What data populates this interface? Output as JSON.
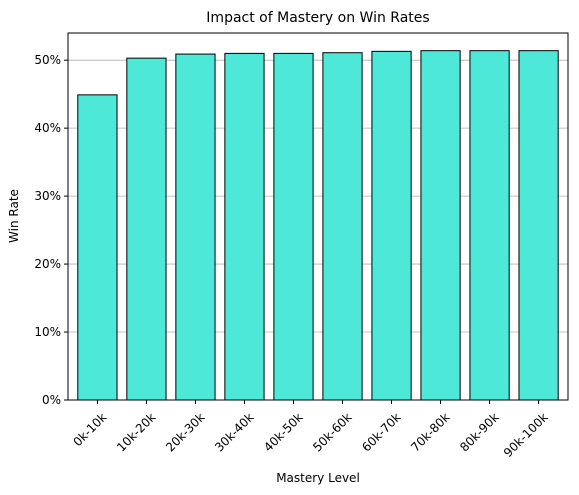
{
  "chart_data": {
    "type": "bar",
    "title": "Impact of Mastery on Win Rates",
    "xlabel": "Mastery Level",
    "ylabel": "Win Rate",
    "categories": [
      "0k-10k",
      "10k-20k",
      "20k-30k",
      "30k-40k",
      "40k-50k",
      "50k-60k",
      "60k-70k",
      "70k-80k",
      "80k-90k",
      "90k-100k"
    ],
    "values": [
      0.449,
      0.503,
      0.509,
      0.51,
      0.51,
      0.511,
      0.513,
      0.514,
      0.514,
      0.514
    ],
    "ylim": [
      0,
      0.54
    ],
    "yticks": [
      0,
      0.1,
      0.2,
      0.3,
      0.4,
      0.5
    ],
    "ytick_labels": [
      "0%",
      "10%",
      "20%",
      "30%",
      "40%",
      "50%"
    ],
    "grid": "horizontal",
    "colors": {
      "bar_fill": "#4de8d8",
      "bar_edge": "#000000",
      "grid": "#b0b0b0"
    }
  }
}
